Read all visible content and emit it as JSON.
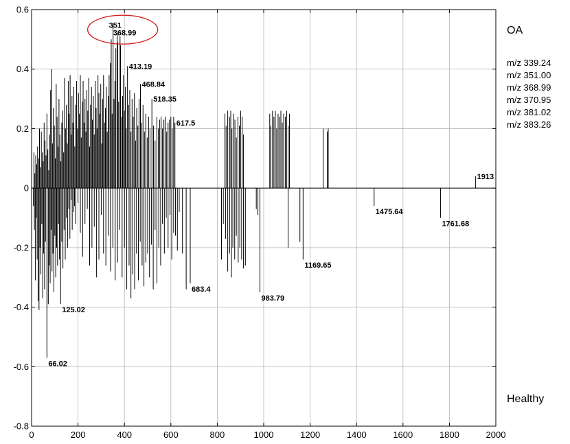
{
  "chart_data": {
    "type": "bar",
    "title": "",
    "xlabel": "",
    "ylabel": "",
    "xlim": [
      0,
      2000
    ],
    "ylim": [
      -0.8,
      0.6
    ],
    "xticks": [
      0,
      200,
      400,
      600,
      800,
      1000,
      1200,
      1400,
      1600,
      1800,
      2000
    ],
    "yticks": [
      -0.8,
      -0.6,
      -0.4,
      -0.2,
      0,
      0.2,
      0.4,
      0.6
    ],
    "grid": true,
    "group_labels": {
      "positive": "OA",
      "negative": "Healthy"
    },
    "highlighted_mz": [
      "m/z 339.24",
      "m/z 351.00",
      "m/z 368.99",
      "m/z 370.95",
      "m/z 381.02",
      "m/z 383.26"
    ],
    "annotations": [
      {
        "text": "351",
        "x": 351,
        "y": 0.55
      },
      {
        "text": "368.99",
        "x": 368.99,
        "y": 0.52
      },
      {
        "text": "413.19",
        "x": 413.19,
        "y": 0.41
      },
      {
        "text": "468.84",
        "x": 468.84,
        "y": 0.35
      },
      {
        "text": "518.35",
        "x": 518.35,
        "y": 0.3
      },
      {
        "text": "617.5",
        "x": 617.5,
        "y": 0.22
      },
      {
        "text": "1913",
        "x": 1913,
        "y": 0.04
      },
      {
        "text": "1475.64",
        "x": 1475.64,
        "y": -0.06
      },
      {
        "text": "1761.68",
        "x": 1761.68,
        "y": -0.1
      },
      {
        "text": "1169.65",
        "x": 1169.65,
        "y": -0.24
      },
      {
        "text": "683.4",
        "x": 683.4,
        "y": -0.32
      },
      {
        "text": "983.79",
        "x": 983.79,
        "y": -0.35
      },
      {
        "text": "125.02",
        "x": 125.02,
        "y": -0.39
      },
      {
        "text": "66.02",
        "x": 66.02,
        "y": -0.57
      }
    ],
    "circled_labels": [
      "351",
      "368.99"
    ],
    "series": [
      {
        "values": [
          [
            10,
            0.12
          ],
          [
            14,
            0.05
          ],
          [
            18,
            0.11
          ],
          [
            22,
            0.08
          ],
          [
            26,
            0.14
          ],
          [
            30,
            0.1
          ],
          [
            34,
            0.2
          ],
          [
            38,
            0.07
          ],
          [
            42,
            0.19
          ],
          [
            46,
            0.12
          ],
          [
            50,
            0.09
          ],
          [
            54,
            0.22
          ],
          [
            58,
            0.16
          ],
          [
            62,
            0.11
          ],
          [
            66,
            0.25
          ],
          [
            70,
            0.13
          ],
          [
            74,
            0.06
          ],
          [
            78,
            0.18
          ],
          [
            82,
            0.33
          ],
          [
            86,
            0.4
          ],
          [
            90,
            0.15
          ],
          [
            94,
            0.27
          ],
          [
            98,
            0.21
          ],
          [
            102,
            0.1
          ],
          [
            106,
            0.35
          ],
          [
            110,
            0.24
          ],
          [
            114,
            0.14
          ],
          [
            118,
            0.3
          ],
          [
            122,
            0.18
          ],
          [
            126,
            0.09
          ],
          [
            130,
            0.22
          ],
          [
            134,
            0.26
          ],
          [
            138,
            0.12
          ],
          [
            142,
            0.37
          ],
          [
            146,
            0.2
          ],
          [
            150,
            0.28
          ],
          [
            154,
            0.15
          ],
          [
            158,
            0.36
          ],
          [
            162,
            0.25
          ],
          [
            166,
            0.38
          ],
          [
            170,
            0.18
          ],
          [
            174,
            0.31
          ],
          [
            178,
            0.22
          ],
          [
            182,
            0.34
          ],
          [
            186,
            0.14
          ],
          [
            190,
            0.28
          ],
          [
            194,
            0.36
          ],
          [
            198,
            0.2
          ],
          [
            202,
            0.32
          ],
          [
            206,
            0.25
          ],
          [
            210,
            0.38
          ],
          [
            214,
            0.17
          ],
          [
            218,
            0.29
          ],
          [
            222,
            0.36
          ],
          [
            226,
            0.22
          ],
          [
            230,
            0.3
          ],
          [
            234,
            0.19
          ],
          [
            238,
            0.33
          ],
          [
            242,
            0.26
          ],
          [
            246,
            0.37
          ],
          [
            250,
            0.14
          ],
          [
            254,
            0.28
          ],
          [
            258,
            0.34
          ],
          [
            262,
            0.23
          ],
          [
            266,
            0.31
          ],
          [
            270,
            0.18
          ],
          [
            274,
            0.36
          ],
          [
            278,
            0.27
          ],
          [
            282,
            0.2
          ],
          [
            286,
            0.38
          ],
          [
            290,
            0.32
          ],
          [
            294,
            0.25
          ],
          [
            298,
            0.35
          ],
          [
            302,
            0.15
          ],
          [
            306,
            0.3
          ],
          [
            310,
            0.38
          ],
          [
            314,
            0.22
          ],
          [
            318,
            0.27
          ],
          [
            322,
            0.34
          ],
          [
            326,
            0.19
          ],
          [
            330,
            0.31
          ],
          [
            334,
            0.38
          ],
          [
            339.24,
            0.42
          ],
          [
            343,
            0.5
          ],
          [
            347,
            0.25
          ],
          [
            351,
            0.55
          ],
          [
            355,
            0.3
          ],
          [
            359,
            0.36
          ],
          [
            363,
            0.47
          ],
          [
            368.99,
            0.52
          ],
          [
            370.95,
            0.49
          ],
          [
            375,
            0.29
          ],
          [
            381.02,
            0.51
          ],
          [
            383.26,
            0.48
          ],
          [
            388,
            0.24
          ],
          [
            392,
            0.31
          ],
          [
            396,
            0.38
          ],
          [
            400,
            0.26
          ],
          [
            404,
            0.34
          ],
          [
            408,
            0.2
          ],
          [
            413.19,
            0.41
          ],
          [
            418,
            0.28
          ],
          [
            423,
            0.33
          ],
          [
            428,
            0.19
          ],
          [
            433,
            0.3
          ],
          [
            438,
            0.24
          ],
          [
            443,
            0.32
          ],
          [
            448,
            0.16
          ],
          [
            453,
            0.27
          ],
          [
            458,
            0.21
          ],
          [
            463,
            0.3
          ],
          [
            468.84,
            0.35
          ],
          [
            474,
            0.22
          ],
          [
            480,
            0.28
          ],
          [
            486,
            0.19
          ],
          [
            492,
            0.25
          ],
          [
            498,
            0.17
          ],
          [
            504,
            0.24
          ],
          [
            510,
            0.2
          ],
          [
            518.35,
            0.3
          ],
          [
            525,
            0.21
          ],
          [
            532,
            0.16
          ],
          [
            540,
            0.24
          ],
          [
            546,
            0.2
          ],
          [
            552,
            0.23
          ],
          [
            558,
            0.24
          ],
          [
            564,
            0.2
          ],
          [
            570,
            0.23
          ],
          [
            576,
            0.24
          ],
          [
            582,
            0.19
          ],
          [
            588,
            0.22
          ],
          [
            594,
            0.23
          ],
          [
            600,
            0.24
          ],
          [
            606,
            0.2
          ],
          [
            612,
            0.24
          ],
          [
            617.5,
            0.22
          ],
          [
            833,
            0.25
          ],
          [
            838,
            0.21
          ],
          [
            845,
            0.26
          ],
          [
            853,
            0.24
          ],
          [
            858,
            0.26
          ],
          [
            863,
            0.2
          ],
          [
            870,
            0.25
          ],
          [
            876,
            0.23
          ],
          [
            882,
            0.17
          ],
          [
            889,
            0.24
          ],
          [
            895,
            0.21
          ],
          [
            901,
            0.26
          ],
          [
            907,
            0.24
          ],
          [
            913,
            0.18
          ],
          [
            1026,
            0.25
          ],
          [
            1031,
            0.21
          ],
          [
            1038,
            0.26
          ],
          [
            1044,
            0.24
          ],
          [
            1050,
            0.26
          ],
          [
            1056,
            0.2
          ],
          [
            1062,
            0.25
          ],
          [
            1068,
            0.24
          ],
          [
            1074,
            0.26
          ],
          [
            1080,
            0.22
          ],
          [
            1086,
            0.25
          ],
          [
            1093,
            0.24
          ],
          [
            1099,
            0.26
          ],
          [
            1105,
            0.21
          ],
          [
            1111,
            0.25
          ],
          [
            1256,
            0.2
          ],
          [
            1274,
            0.19
          ],
          [
            1278,
            0.2
          ],
          [
            1913,
            0.04
          ],
          [
            8,
            -0.06
          ],
          [
            12,
            -0.14
          ],
          [
            16,
            -0.31
          ],
          [
            20,
            -0.1
          ],
          [
            24,
            -0.24
          ],
          [
            28,
            -0.38
          ],
          [
            32,
            -0.41
          ],
          [
            36,
            -0.2
          ],
          [
            40,
            -0.29
          ],
          [
            44,
            -0.12
          ],
          [
            48,
            -0.37
          ],
          [
            52,
            -0.22
          ],
          [
            56,
            -0.34
          ],
          [
            60,
            -0.18
          ],
          [
            66.02,
            -0.57
          ],
          [
            72,
            -0.39
          ],
          [
            76,
            -0.26
          ],
          [
            80,
            -0.32
          ],
          [
            84,
            -0.14
          ],
          [
            88,
            -0.28
          ],
          [
            92,
            -0.22
          ],
          [
            96,
            -0.35
          ],
          [
            100,
            -0.16
          ],
          [
            104,
            -0.3
          ],
          [
            108,
            -0.2
          ],
          [
            112,
            -0.26
          ],
          [
            116,
            -0.12
          ],
          [
            120,
            -0.24
          ],
          [
            125.02,
            -0.39
          ],
          [
            130,
            -0.18
          ],
          [
            135,
            -0.27
          ],
          [
            140,
            -0.14
          ],
          [
            145,
            -0.24
          ],
          [
            150,
            -0.1
          ],
          [
            155,
            -0.2
          ],
          [
            160,
            -0.07
          ],
          [
            165,
            -0.17
          ],
          [
            170,
            -0.04
          ],
          [
            175,
            -0.14
          ],
          [
            180,
            -0.08
          ],
          [
            185,
            -0.06
          ],
          [
            190,
            -0.12
          ],
          [
            200,
            -0.05
          ],
          [
            210,
            -0.15
          ],
          [
            220,
            -0.23
          ],
          [
            230,
            -0.12
          ],
          [
            240,
            -0.07
          ],
          [
            250,
            -0.26
          ],
          [
            260,
            -0.2
          ],
          [
            270,
            -0.13
          ],
          [
            280,
            -0.3
          ],
          [
            290,
            -0.24
          ],
          [
            300,
            -0.09
          ],
          [
            310,
            -0.22
          ],
          [
            320,
            -0.26
          ],
          [
            330,
            -0.16
          ],
          [
            340,
            -0.28
          ],
          [
            350,
            -0.2
          ],
          [
            360,
            -0.31
          ],
          [
            370,
            -0.25
          ],
          [
            380,
            -0.14
          ],
          [
            390,
            -0.3
          ],
          [
            400,
            -0.2
          ],
          [
            410,
            -0.34
          ],
          [
            420,
            -0.26
          ],
          [
            428,
            -0.37
          ],
          [
            436,
            -0.29
          ],
          [
            444,
            -0.34
          ],
          [
            452,
            -0.22
          ],
          [
            460,
            -0.31
          ],
          [
            468,
            -0.18
          ],
          [
            476,
            -0.26
          ],
          [
            484,
            -0.33
          ],
          [
            492,
            -0.25
          ],
          [
            500,
            -0.22
          ],
          [
            508,
            -0.3
          ],
          [
            516,
            -0.19
          ],
          [
            524,
            -0.34
          ],
          [
            532,
            -0.14
          ],
          [
            540,
            -0.32
          ],
          [
            548,
            -0.2
          ],
          [
            556,
            -0.26
          ],
          [
            564,
            -0.12
          ],
          [
            572,
            -0.22
          ],
          [
            580,
            -0.1
          ],
          [
            588,
            -0.2
          ],
          [
            596,
            -0.09
          ],
          [
            604,
            -0.24
          ],
          [
            612,
            -0.15
          ],
          [
            620,
            -0.16
          ],
          [
            628,
            -0.21
          ],
          [
            636,
            -0.08
          ],
          [
            650,
            -0.22
          ],
          [
            666,
            -0.34
          ],
          [
            683.4,
            -0.32
          ],
          [
            818,
            -0.24
          ],
          [
            826,
            -0.12
          ],
          [
            836,
            -0.17
          ],
          [
            845,
            -0.28
          ],
          [
            853,
            -0.22
          ],
          [
            861,
            -0.3
          ],
          [
            867,
            -0.2
          ],
          [
            875,
            -0.24
          ],
          [
            882,
            -0.16
          ],
          [
            890,
            -0.25
          ],
          [
            897,
            -0.2
          ],
          [
            905,
            -0.24
          ],
          [
            913,
            -0.27
          ],
          [
            921,
            -0.26
          ],
          [
            968,
            -0.07
          ],
          [
            975,
            -0.09
          ],
          [
            983.79,
            -0.35
          ],
          [
            1105,
            -0.2
          ],
          [
            1156,
            -0.18
          ],
          [
            1169.65,
            -0.24
          ],
          [
            1475.64,
            -0.06
          ],
          [
            1761.68,
            -0.1
          ]
        ]
      }
    ]
  }
}
